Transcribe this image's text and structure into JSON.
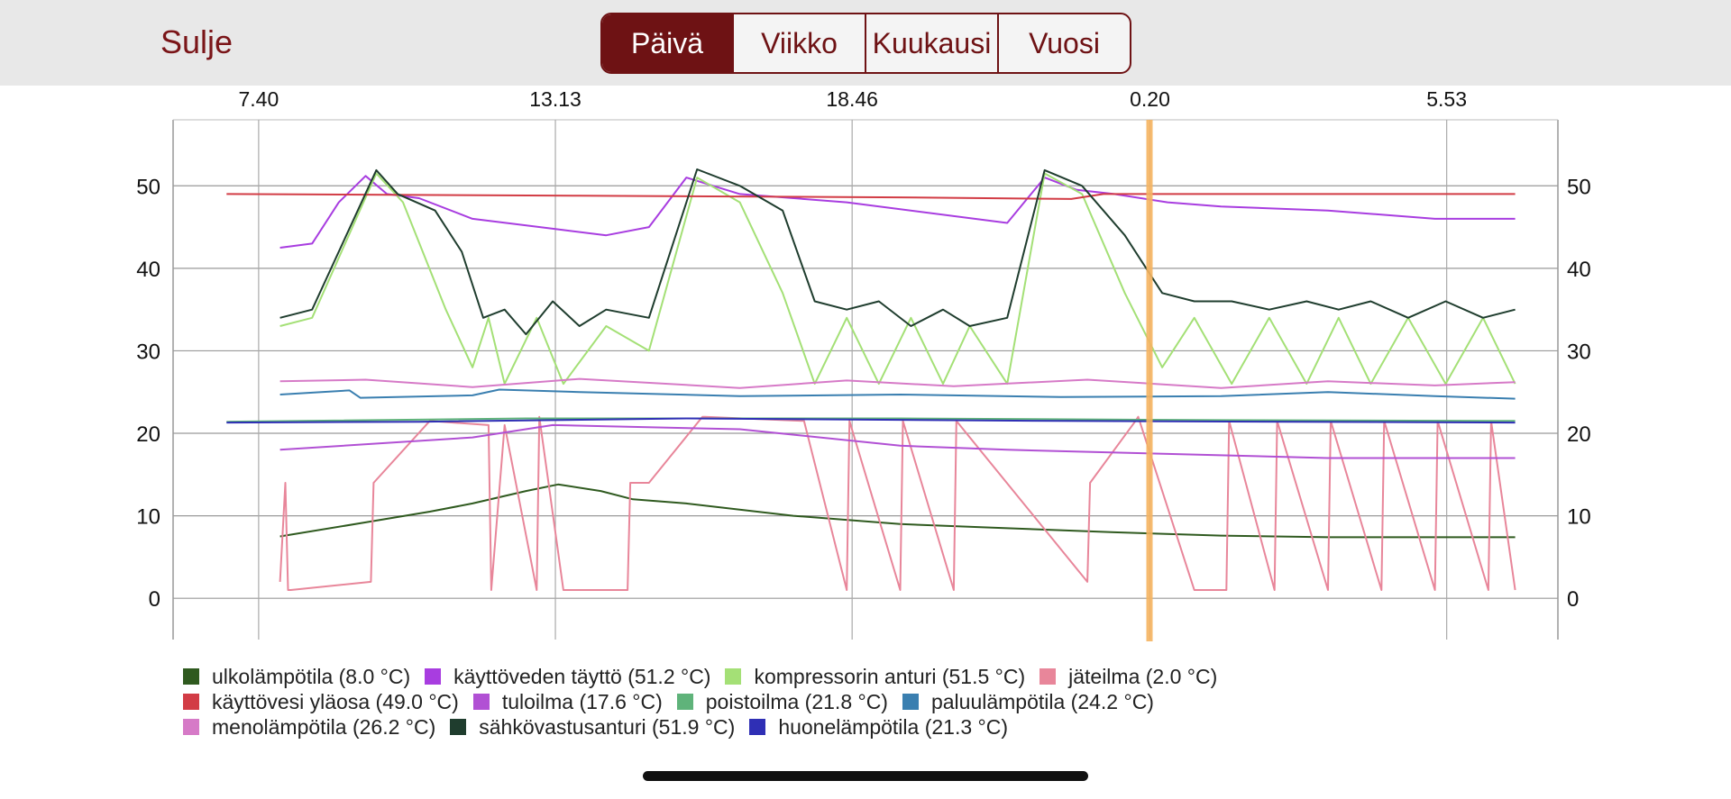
{
  "header": {
    "close_label": "Sulje",
    "tabs": [
      "Päivä",
      "Viikko",
      "Kuukausi",
      "Vuosi"
    ],
    "selected_tab": "Päivä",
    "accent_color": "#6e1214"
  },
  "chart_data": {
    "type": "line",
    "x_tick_labels": [
      "7.40",
      "13.13",
      "18.46",
      "0.20",
      "5.53"
    ],
    "ylim": [
      -5,
      58
    ],
    "y_ticks": [
      0,
      10,
      20,
      30,
      40,
      50
    ],
    "grid": true,
    "legend_position": "bottom",
    "cursor_time": "0.20",
    "cursor_color": "#f5b460",
    "x_unit": "hours since 7.40",
    "series": [
      {
        "name": "ulkolämpötila (8.0 °C)",
        "color": "#2f5a1f",
        "x": [
          0.4,
          2,
          3.2,
          4,
          5,
          5.6,
          6.4,
          7,
          8,
          10,
          12,
          14,
          16,
          18,
          20,
          22,
          23.5
        ],
        "y": [
          7.5,
          9.2,
          10.5,
          11.5,
          13,
          13.8,
          13,
          12,
          11.5,
          10,
          9,
          8.5,
          8,
          7.6,
          7.4,
          7.4,
          7.4
        ]
      },
      {
        "name": "käyttöveden täyttö (51.2 °C)",
        "color": "#a83de0",
        "x": [
          0.4,
          1,
          1.5,
          2,
          2.4,
          3,
          4,
          6.5,
          7.3,
          8,
          8.5,
          9,
          11,
          14,
          14.7,
          15.3,
          16,
          17,
          18,
          20,
          22,
          23.5
        ],
        "y": [
          42.5,
          43,
          48,
          51.2,
          49,
          48.5,
          46,
          44,
          45,
          51,
          50,
          49,
          48,
          45.5,
          51,
          49.5,
          49,
          48,
          47.5,
          47,
          46,
          46
        ]
      },
      {
        "name": "kompressorin anturi (51.5 °C)",
        "color": "#a4e076",
        "x": [
          0.4,
          1,
          2.2,
          2.7,
          3.5,
          4,
          4.3,
          4.6,
          5.2,
          5.7,
          6.5,
          7.3,
          8.2,
          9,
          9.8,
          10.4,
          11,
          11.6,
          12.2,
          12.8,
          13.3,
          14,
          14.7,
          15.4,
          16.2,
          16.9,
          17.5,
          18.2,
          18.9,
          19.6,
          20.2,
          20.8,
          21.5,
          22.2,
          22.9,
          23.5
        ],
        "y": [
          33,
          34,
          51.5,
          48,
          35,
          28,
          34,
          26,
          34,
          26,
          33,
          30,
          51,
          48,
          37,
          26,
          34,
          26,
          34,
          26,
          33,
          26,
          51.5,
          49,
          37,
          28,
          34,
          26,
          34,
          26,
          34,
          26,
          34,
          26,
          34,
          26
        ]
      },
      {
        "name": "jäteilma (2.0 °C)",
        "color": "#e8869a",
        "x": [
          0.4,
          0.5,
          0.55,
          0.6,
          2.1,
          2.15,
          3.2,
          4.3,
          4.35,
          4.6,
          5.2,
          5.25,
          5.7,
          6.9,
          6.95,
          7.3,
          8.3,
          8.35,
          10.2,
          11,
          11.05,
          12,
          12.05,
          13,
          13.05,
          15.5,
          15.55,
          16.4,
          16.45,
          17.5,
          18.1,
          18.15,
          19,
          19.05,
          20,
          20.05,
          21,
          21.05,
          22,
          22.05,
          23,
          23.05,
          23.5
        ],
        "y": [
          2,
          14,
          1,
          1,
          2,
          14,
          21.5,
          21,
          1,
          21,
          1,
          22,
          1,
          1,
          14,
          14,
          22,
          22,
          21.5,
          1,
          21.5,
          1,
          21.5,
          1,
          21.5,
          2,
          14,
          21.5,
          22,
          1,
          1,
          21.5,
          1,
          21.5,
          1,
          21.5,
          1,
          21.5,
          1,
          21.5,
          1,
          21.5,
          1
        ]
      },
      {
        "name": "käyttövesi yläosa (49.0 °C)",
        "color": "#d23c45",
        "x": [
          -0.6,
          6,
          12,
          15.2,
          15.8,
          23.5
        ],
        "y": [
          49,
          48.8,
          48.6,
          48.4,
          49,
          49
        ]
      },
      {
        "name": "tuloilma (17.6 °C)",
        "color": "#b150d4",
        "x": [
          0.4,
          4,
          5.5,
          9,
          12,
          14,
          17,
          20,
          23.5
        ],
        "y": [
          18,
          19.5,
          21,
          20.5,
          18.5,
          18,
          17.5,
          17,
          17
        ]
      },
      {
        "name": "poistoilma (21.8 °C)",
        "color": "#5fb37a",
        "x": [
          -0.6,
          5,
          12,
          18,
          23.5
        ],
        "y": [
          21.4,
          21.8,
          21.8,
          21.6,
          21.5
        ]
      },
      {
        "name": "paluulämpötila (24.2 °C)",
        "color": "#3a7fb0",
        "x": [
          0.4,
          1.7,
          1.9,
          4,
          4.5,
          6,
          9,
          12,
          15,
          18,
          20,
          22,
          23.5
        ],
        "y": [
          24.7,
          25.2,
          24.3,
          24.6,
          25.3,
          25,
          24.5,
          24.7,
          24.4,
          24.5,
          25,
          24.5,
          24.2
        ]
      },
      {
        "name": "menolämpötila (26.2 °C)",
        "color": "#d67ac7",
        "x": [
          0.4,
          2,
          4,
          6,
          9,
          11,
          13,
          15.5,
          18,
          20,
          22,
          23.5
        ],
        "y": [
          26.3,
          26.5,
          25.6,
          26.6,
          25.5,
          26.4,
          25.7,
          26.5,
          25.5,
          26.3,
          25.8,
          26.2
        ]
      },
      {
        "name": "sähkövastusanturi (51.9 °C)",
        "color": "#1f3d2e",
        "x": [
          0.4,
          1,
          2.2,
          2.6,
          3.3,
          3.8,
          4.2,
          4.6,
          5,
          5.5,
          6,
          6.5,
          7.3,
          8.2,
          9,
          9.8,
          10.4,
          11,
          11.6,
          12.2,
          12.8,
          13.3,
          14,
          14.7,
          15.4,
          16.2,
          16.9,
          17.5,
          18.2,
          18.9,
          19.6,
          20.2,
          20.8,
          21.5,
          22.2,
          22.9,
          23.5
        ],
        "y": [
          34,
          35,
          51.9,
          49,
          47,
          42,
          34,
          35,
          32,
          36,
          33,
          35,
          34,
          52,
          50,
          47,
          36,
          35,
          36,
          33,
          35,
          33,
          34,
          51.9,
          50,
          44,
          37,
          36,
          36,
          35,
          36,
          35,
          36,
          34,
          36,
          34,
          35
        ]
      },
      {
        "name": "huonelämpötila (21.3 °C)",
        "color": "#2f2fb5",
        "x": [
          -0.6,
          3,
          8,
          15,
          23.5
        ],
        "y": [
          21.3,
          21.4,
          21.8,
          21.5,
          21.3
        ]
      }
    ]
  }
}
